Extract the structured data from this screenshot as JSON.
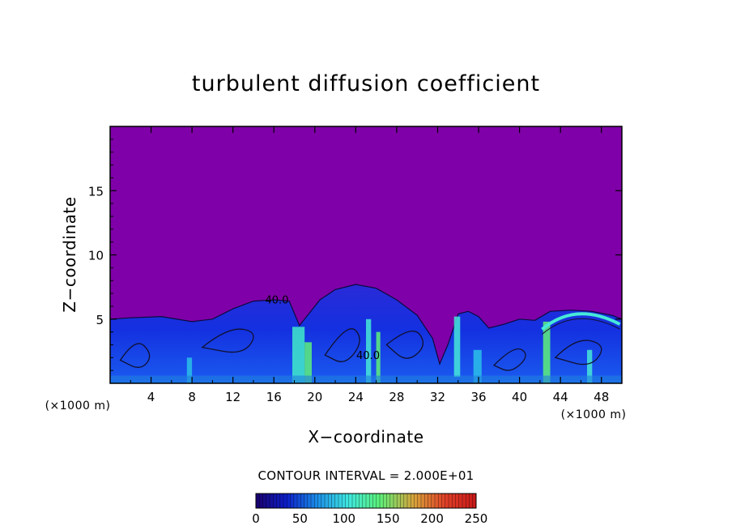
{
  "chart_data": {
    "type": "heatmap",
    "title": "turbulent diffusion coefficient",
    "xlabel": "X−coordinate",
    "ylabel": "Z−coordinate",
    "x_unit_label": "(×1000 m)",
    "x_unit_label_right": "(×1000 m)",
    "xlim": [
      0,
      50
    ],
    "ylim": [
      0,
      20
    ],
    "x_ticks": [
      4,
      8,
      12,
      16,
      20,
      24,
      28,
      32,
      36,
      40,
      44,
      48
    ],
    "y_ticks": [
      5,
      10,
      15
    ],
    "background_value": 0,
    "background_color": "#7f00a8",
    "contour_interval_text": "CONTOUR INTERVAL = 2.000E+01",
    "contour_labels": [
      {
        "x": 16.3,
        "z": 6.2,
        "text": "40.0"
      },
      {
        "x": 25.2,
        "z": 1.9,
        "text": "40.0"
      }
    ],
    "layer_top_profile": {
      "x": [
        0,
        2,
        5,
        8,
        10,
        12,
        14,
        16,
        17.5,
        18.5,
        19.5,
        20.5,
        22,
        24,
        26,
        28,
        30,
        31.5,
        32.2,
        33,
        34,
        35,
        36,
        37,
        38.5,
        40,
        41.5,
        43,
        45,
        47,
        49,
        50
      ],
      "z": [
        5.0,
        5.1,
        5.2,
        4.8,
        5.0,
        5.8,
        6.4,
        6.5,
        6.4,
        4.5,
        5.5,
        6.5,
        7.3,
        7.7,
        7.4,
        6.5,
        5.3,
        3.5,
        1.5,
        3.0,
        5.4,
        5.6,
        5.2,
        4.3,
        4.6,
        5.0,
        4.9,
        5.6,
        5.7,
        5.6,
        5.3,
        5.0
      ]
    },
    "grid": false,
    "colorbar": {
      "ticks": [
        0,
        50,
        100,
        150,
        200,
        250
      ],
      "range": [
        0,
        250
      ],
      "colors": [
        "#1a006e",
        "#0c1fc8",
        "#1b8fe8",
        "#3fe8e0",
        "#5bf07a",
        "#d9a23a",
        "#e04028",
        "#c81818"
      ]
    }
  }
}
